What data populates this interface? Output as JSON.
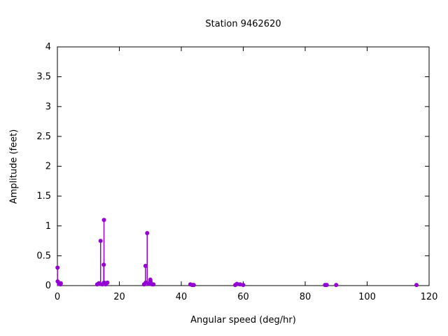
{
  "chart_data": {
    "type": "scatter",
    "style": "impulses-with-points",
    "title": "Station 9462620",
    "xlabel": "Angular speed (deg/hr)",
    "ylabel": "Amplitude (feet)",
    "xlim": [
      0,
      120
    ],
    "ylim": [
      0,
      4
    ],
    "xticks": [
      0,
      20,
      40,
      60,
      80,
      100,
      120
    ],
    "yticks": [
      0,
      0.5,
      1,
      1.5,
      2,
      2.5,
      3,
      3.5,
      4
    ],
    "grid": false,
    "legend": "none",
    "marker_color": "#9400d3",
    "axis_color": "#000000",
    "background_color": "#ffffff",
    "points": [
      [
        0.041,
        0.3
      ],
      [
        0.082,
        0.07
      ],
      [
        0.544,
        0.03
      ],
      [
        1.016,
        0.02
      ],
      [
        1.098,
        0.04
      ],
      [
        12.854,
        0.02
      ],
      [
        13.399,
        0.04
      ],
      [
        13.472,
        0.03
      ],
      [
        13.943,
        0.75
      ],
      [
        14.492,
        0.02
      ],
      [
        14.918,
        0.04
      ],
      [
        14.959,
        0.35
      ],
      [
        15.041,
        1.1
      ],
      [
        15.082,
        0.05
      ],
      [
        15.585,
        0.02
      ],
      [
        16.139,
        0.05
      ],
      [
        27.968,
        0.02
      ],
      [
        28.44,
        0.33
      ],
      [
        28.512,
        0.05
      ],
      [
        28.984,
        0.88
      ],
      [
        29.456,
        0.04
      ],
      [
        29.528,
        0.03
      ],
      [
        30.0,
        0.1
      ],
      [
        30.082,
        0.07
      ],
      [
        30.626,
        0.02
      ],
      [
        31.016,
        0.02
      ],
      [
        42.927,
        0.02
      ],
      [
        43.476,
        0.01
      ],
      [
        44.025,
        0.01
      ],
      [
        57.424,
        0.01
      ],
      [
        57.968,
        0.03
      ],
      [
        58.984,
        0.02
      ],
      [
        60.0,
        0.01
      ],
      [
        86.407,
        0.01
      ],
      [
        86.952,
        0.01
      ],
      [
        90.0,
        0.01
      ],
      [
        115.936,
        0.01
      ]
    ]
  }
}
